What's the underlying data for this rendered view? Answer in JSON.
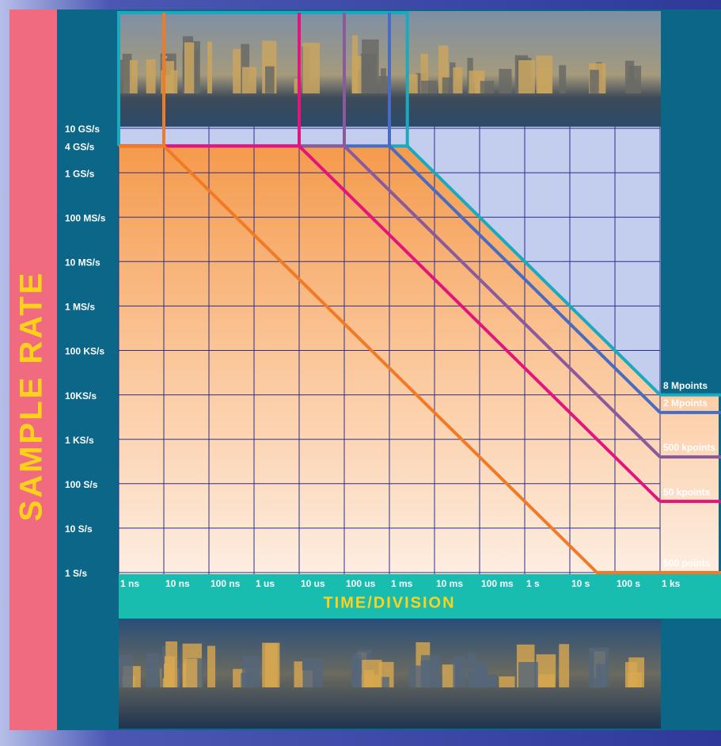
{
  "chart_data": {
    "type": "line",
    "y_label": "SAMPLE RATE",
    "x_label": "TIME/DIVISION",
    "xscale": "log",
    "yscale": "log",
    "grid": true,
    "xlim": [
      1e-09,
      1000
    ],
    "xticks": [
      {
        "value": 1e-09,
        "label": "1 ns"
      },
      {
        "value": 1e-08,
        "label": "10 ns"
      },
      {
        "value": 1e-07,
        "label": "100 ns"
      },
      {
        "value": 1e-06,
        "label": "1 us"
      },
      {
        "value": 1e-05,
        "label": "10 us"
      },
      {
        "value": 0.0001,
        "label": "100 us"
      },
      {
        "value": 0.001,
        "label": "1 ms"
      },
      {
        "value": 0.01,
        "label": "10 ms"
      },
      {
        "value": 0.1,
        "label": "100 ms"
      },
      {
        "value": 1,
        "label": "1 s"
      },
      {
        "value": 10,
        "label": "10 s"
      },
      {
        "value": 100,
        "label": "100 s"
      },
      {
        "value": 1000,
        "label": "1 ks"
      }
    ],
    "ylim": [
      1,
      10000000000.0
    ],
    "yticks": [
      {
        "value": 10000000000.0,
        "label": "10 GS/s"
      },
      {
        "value": 4000000000.0,
        "label": "4 GS/s"
      },
      {
        "value": 1000000000.0,
        "label": "1 GS/s"
      },
      {
        "value": 100000000.0,
        "label": "100 MS/s"
      },
      {
        "value": 10000000.0,
        "label": "10 MS/s"
      },
      {
        "value": 1000000.0,
        "label": "1 MS/s"
      },
      {
        "value": 100000.0,
        "label": "100 KS/s"
      },
      {
        "value": 10000.0,
        "label": "10KS/s"
      },
      {
        "value": 1000,
        "label": "1 KS/s"
      },
      {
        "value": 100,
        "label": "100 S/s"
      },
      {
        "value": 10,
        "label": "10 S/s"
      },
      {
        "value": 1,
        "label": "1 S/s"
      }
    ],
    "series": [
      {
        "name": "8 Mpoints",
        "color": "#1aaabf",
        "x": [
          1e-09,
          0.0025,
          1000
        ],
        "values": [
          4000000000.0,
          4000000000.0,
          10000
        ]
      },
      {
        "name": "2 Mpoints",
        "color": "#4a6cc0",
        "x": [
          1e-09,
          0.001,
          1000
        ],
        "values": [
          4000000000.0,
          4000000000.0,
          4000
        ]
      },
      {
        "name": "500 kpoints",
        "color": "#8a5a9c",
        "x": [
          1e-09,
          0.0001,
          1000
        ],
        "values": [
          4000000000.0,
          4000000000.0,
          400
        ]
      },
      {
        "name": "50 kpoints",
        "color": "#e3157c",
        "x": [
          1e-09,
          1e-05,
          1000
        ],
        "values": [
          4000000000.0,
          4000000000.0,
          40
        ]
      },
      {
        "name": "500 points",
        "color": "#f07a26",
        "x": [
          1e-09,
          1e-08,
          40,
          1000
        ],
        "values": [
          4000000000.0,
          4000000000.0,
          1,
          1
        ]
      }
    ]
  }
}
